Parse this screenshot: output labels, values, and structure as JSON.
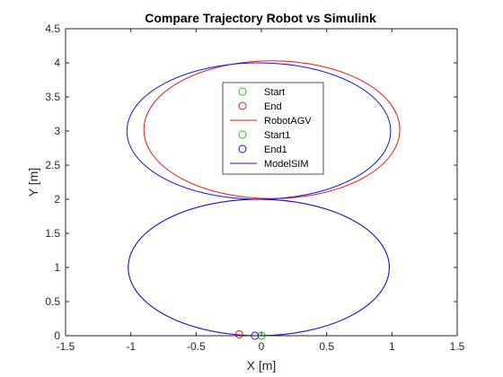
{
  "chart_data": {
    "type": "line",
    "title": "Compare Trajectory Robot vs Simulink",
    "xlabel": "X [m]",
    "ylabel": "Y [m]",
    "xlim": [
      -1.5,
      1.5
    ],
    "ylim": [
      0,
      4.5
    ],
    "xticks": [
      "-1.5",
      "-1",
      "-0.5",
      "0",
      "0.5",
      "1",
      "1.5"
    ],
    "yticks": [
      "0",
      "0.5",
      "1",
      "1.5",
      "2",
      "2.5",
      "3",
      "3.5",
      "4",
      "4.5"
    ],
    "grid": false,
    "legend_position": "inside-top-center",
    "series": [
      {
        "name": "RobotAGV",
        "type": "line",
        "color": "#e81515",
        "lower_loop": {
          "cx": -0.02,
          "cy": 1.0,
          "rx": 1.0,
          "ry": 1.0
        },
        "upper_loop": {
          "cx": 0.08,
          "cy": 3.02,
          "rx": 0.98,
          "ry": 1.01
        },
        "path_points": [
          [
            0.0,
            0.0
          ],
          [
            1.0,
            1.0
          ],
          [
            0.0,
            2.0
          ],
          [
            -0.97,
            3.0
          ],
          [
            0.05,
            4.03
          ],
          [
            1.06,
            3.0
          ],
          [
            0.05,
            2.0
          ],
          [
            -1.0,
            1.0
          ],
          [
            -0.17,
            0.02
          ]
        ]
      },
      {
        "name": "ModelSIM",
        "type": "line",
        "color": "#1414e0",
        "lower_loop": {
          "cx": -0.02,
          "cy": 1.0,
          "rx": 1.0,
          "ry": 1.0
        },
        "upper_loop": {
          "cx": -0.02,
          "cy": 3.0,
          "rx": 1.01,
          "ry": 1.0
        },
        "path_points": [
          [
            0.0,
            0.0
          ],
          [
            1.0,
            1.0
          ],
          [
            0.0,
            2.0
          ],
          [
            -1.03,
            3.0
          ],
          [
            -0.02,
            4.0
          ],
          [
            1.0,
            3.0
          ],
          [
            0.0,
            2.0
          ],
          [
            -1.0,
            1.0
          ],
          [
            -0.05,
            0.0
          ]
        ]
      },
      {
        "name": "Start",
        "type": "marker",
        "color": "#22c022",
        "x": 0.0,
        "y": 0.0
      },
      {
        "name": "End",
        "type": "marker",
        "color": "#e81515",
        "x": -0.17,
        "y": 0.02
      },
      {
        "name": "Start1",
        "type": "marker",
        "color": "#22c022",
        "x": 0.0,
        "y": 0.0
      },
      {
        "name": "End1",
        "type": "marker",
        "color": "#1414e0",
        "x": -0.05,
        "y": 0.0
      }
    ],
    "legend": [
      {
        "label": "Start",
        "kind": "marker",
        "color": "#22c022"
      },
      {
        "label": "End",
        "kind": "marker",
        "color": "#e81515"
      },
      {
        "label": "RobotAGV",
        "kind": "line",
        "color": "#e81515"
      },
      {
        "label": "Start1",
        "kind": "marker",
        "color": "#22c022"
      },
      {
        "label": "End1",
        "kind": "marker",
        "color": "#1414e0"
      },
      {
        "label": "ModelSIM",
        "kind": "line",
        "color": "#1414e0"
      }
    ]
  }
}
